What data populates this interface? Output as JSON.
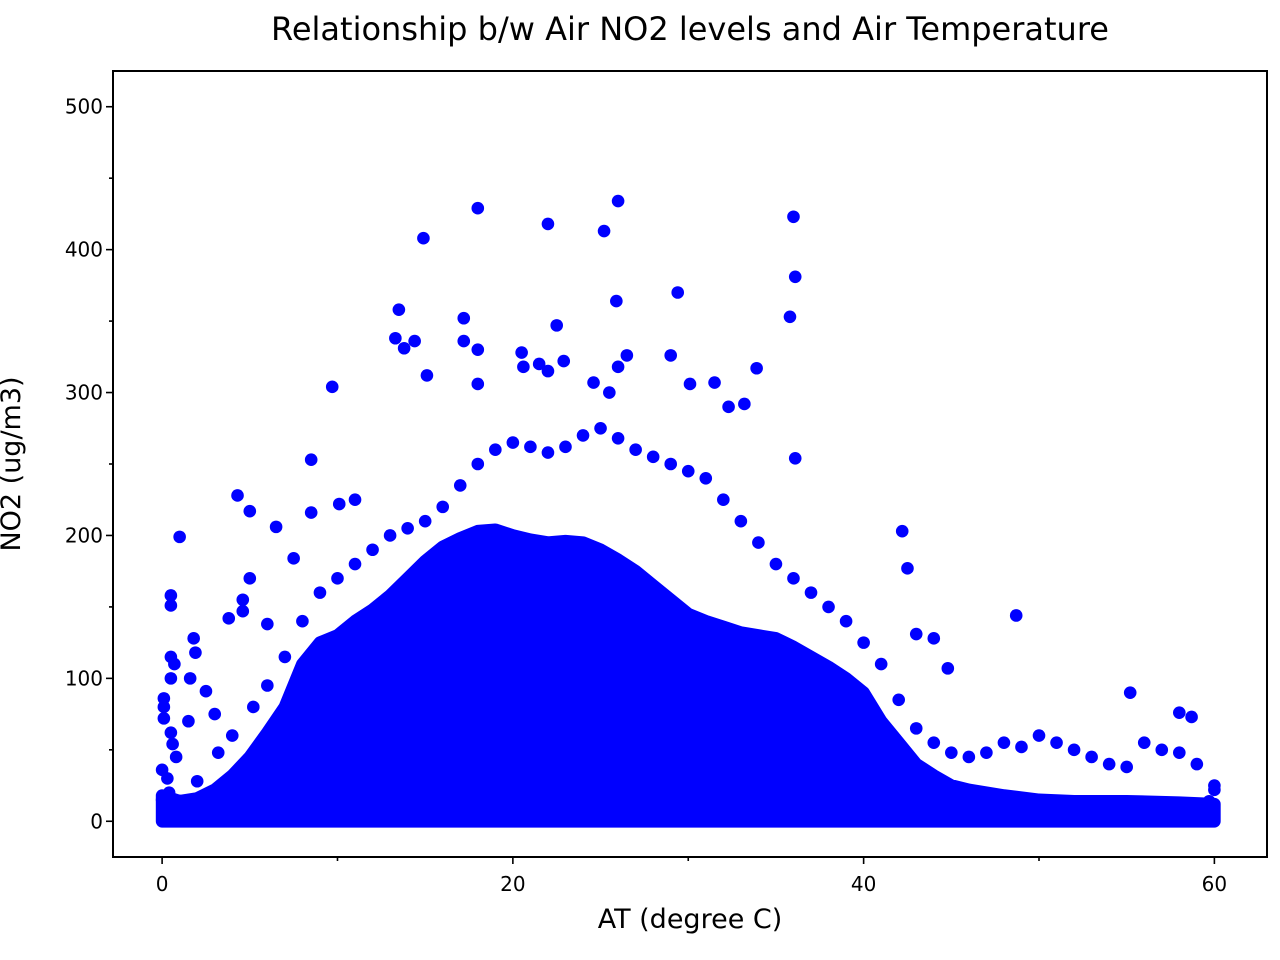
{
  "chart_data": {
    "type": "scatter",
    "title": "Relationship b/w Air NO2 levels and Air Temperature",
    "xlabel": "AT (degree C)",
    "ylabel": "NO2 (ug/m3)",
    "xlim": [
      -2.8,
      63
    ],
    "ylim": [
      -25,
      525
    ],
    "xticks": [
      0,
      20,
      40,
      60
    ],
    "xtick_labels": [
      "0",
      "20",
      "40",
      "60"
    ],
    "yticks": [
      0,
      100,
      200,
      300,
      400,
      500
    ],
    "ytick_labels": [
      "0",
      "100",
      "200",
      "300",
      "400",
      "500"
    ],
    "grid": false,
    "legend": "none",
    "marker_color": "#0000ff",
    "series": [
      {
        "points": [
          [
            0.0,
            15
          ],
          [
            0.0,
            36
          ],
          [
            0.1,
            72
          ],
          [
            0.1,
            80
          ],
          [
            0.1,
            86
          ],
          [
            0.2,
            8
          ],
          [
            0.3,
            30
          ],
          [
            0.4,
            20
          ],
          [
            0.5,
            62
          ],
          [
            0.5,
            100
          ],
          [
            0.5,
            115
          ],
          [
            0.5,
            151
          ],
          [
            0.5,
            158
          ],
          [
            0.6,
            54
          ],
          [
            0.7,
            110
          ],
          [
            0.8,
            45
          ],
          [
            1.0,
            199
          ],
          [
            1.5,
            70
          ],
          [
            1.6,
            100
          ],
          [
            1.8,
            128
          ],
          [
            1.9,
            118
          ],
          [
            2.5,
            91
          ],
          [
            3.0,
            75
          ],
          [
            3.8,
            142
          ],
          [
            4.3,
            228
          ],
          [
            4.6,
            147
          ],
          [
            4.6,
            155
          ],
          [
            5.0,
            217
          ],
          [
            5.0,
            170
          ],
          [
            6.0,
            138
          ],
          [
            6.5,
            206
          ],
          [
            7.5,
            184
          ],
          [
            8.5,
            253
          ],
          [
            8.5,
            216
          ],
          [
            9.7,
            304
          ],
          [
            10.1,
            222
          ],
          [
            11.0,
            225
          ],
          [
            13.3,
            338
          ],
          [
            13.5,
            358
          ],
          [
            13.8,
            331
          ],
          [
            14.4,
            336
          ],
          [
            14.9,
            408
          ],
          [
            15.1,
            312
          ],
          [
            17.2,
            352
          ],
          [
            17.2,
            336
          ],
          [
            18.0,
            429
          ],
          [
            18.0,
            330
          ],
          [
            18.0,
            306
          ],
          [
            20.5,
            328
          ],
          [
            20.6,
            318
          ],
          [
            21.5,
            320
          ],
          [
            22.0,
            418
          ],
          [
            22.0,
            315
          ],
          [
            22.5,
            347
          ],
          [
            22.9,
            322
          ],
          [
            24.6,
            307
          ],
          [
            25.2,
            413
          ],
          [
            25.5,
            300
          ],
          [
            25.9,
            364
          ],
          [
            26.0,
            434
          ],
          [
            26.0,
            318
          ],
          [
            26.5,
            326
          ],
          [
            29.0,
            326
          ],
          [
            29.4,
            370
          ],
          [
            30.1,
            306
          ],
          [
            31.5,
            307
          ],
          [
            32.3,
            290
          ],
          [
            33.2,
            292
          ],
          [
            33.9,
            317
          ],
          [
            35.8,
            353
          ],
          [
            36.0,
            423
          ],
          [
            36.1,
            381
          ],
          [
            36.1,
            254
          ],
          [
            42.2,
            203
          ],
          [
            42.5,
            177
          ],
          [
            43.0,
            131
          ],
          [
            44.0,
            128
          ],
          [
            44.8,
            107
          ],
          [
            48.7,
            144
          ],
          [
            55.2,
            90
          ],
          [
            58.0,
            76
          ],
          [
            58.7,
            73
          ],
          [
            59.3,
            3
          ],
          [
            59.7,
            14
          ],
          [
            60.0,
            25
          ],
          [
            1.2,
            10
          ],
          [
            2.0,
            28
          ],
          [
            3.2,
            48
          ],
          [
            4.0,
            60
          ],
          [
            5.2,
            80
          ],
          [
            6.0,
            95
          ],
          [
            7.0,
            115
          ],
          [
            8.0,
            140
          ],
          [
            9.0,
            160
          ],
          [
            10.0,
            170
          ],
          [
            11.0,
            180
          ],
          [
            12.0,
            190
          ],
          [
            13.0,
            200
          ],
          [
            14.0,
            205
          ],
          [
            15.0,
            210
          ],
          [
            16.0,
            220
          ],
          [
            17.0,
            235
          ],
          [
            18.0,
            250
          ],
          [
            19.0,
            260
          ],
          [
            20.0,
            265
          ],
          [
            21.0,
            262
          ],
          [
            22.0,
            258
          ],
          [
            23.0,
            262
          ],
          [
            24.0,
            270
          ],
          [
            25.0,
            275
          ],
          [
            26.0,
            268
          ],
          [
            27.0,
            260
          ],
          [
            28.0,
            255
          ],
          [
            29.0,
            250
          ],
          [
            30.0,
            245
          ],
          [
            31.0,
            240
          ],
          [
            32.0,
            225
          ],
          [
            33.0,
            210
          ],
          [
            34.0,
            195
          ],
          [
            35.0,
            180
          ],
          [
            36.0,
            170
          ],
          [
            37.0,
            160
          ],
          [
            38.0,
            150
          ],
          [
            39.0,
            140
          ],
          [
            40.0,
            125
          ],
          [
            41.0,
            110
          ],
          [
            42.0,
            85
          ],
          [
            43.0,
            65
          ],
          [
            44.0,
            55
          ],
          [
            45.0,
            48
          ],
          [
            46.0,
            45
          ],
          [
            47.0,
            48
          ],
          [
            48.0,
            55
          ],
          [
            49.0,
            52
          ],
          [
            50.0,
            60
          ],
          [
            51.0,
            55
          ],
          [
            52.0,
            50
          ],
          [
            53.0,
            45
          ],
          [
            54.0,
            40
          ],
          [
            55.0,
            38
          ],
          [
            56.0,
            55
          ],
          [
            57.0,
            50
          ],
          [
            58.0,
            48
          ],
          [
            59.0,
            40
          ],
          [
            60.0,
            22
          ]
        ]
      }
    ],
    "dense_region": {
      "description": "dense point cloud",
      "upper_envelope": [
        [
          0.0,
          18
        ],
        [
          1.0,
          14
        ],
        [
          2.0,
          16
        ],
        [
          3.0,
          22
        ],
        [
          4.0,
          32
        ],
        [
          5.0,
          45
        ],
        [
          6.0,
          62
        ],
        [
          7.0,
          80
        ],
        [
          8.0,
          110
        ],
        [
          9.0,
          125
        ],
        [
          10.0,
          130
        ],
        [
          11.0,
          140
        ],
        [
          12.0,
          148
        ],
        [
          13.0,
          158
        ],
        [
          14.0,
          170
        ],
        [
          15.0,
          182
        ],
        [
          16.0,
          192
        ],
        [
          17.0,
          198
        ],
        [
          18.0,
          203
        ],
        [
          19.0,
          204
        ],
        [
          20.0,
          200
        ],
        [
          21.0,
          197
        ],
        [
          22.0,
          195
        ],
        [
          23.0,
          196
        ],
        [
          24.0,
          195
        ],
        [
          25.0,
          190
        ],
        [
          26.0,
          183
        ],
        [
          27.0,
          175
        ],
        [
          28.0,
          165
        ],
        [
          29.0,
          155
        ],
        [
          30.0,
          145
        ],
        [
          31.0,
          140
        ],
        [
          32.0,
          136
        ],
        [
          33.0,
          132
        ],
        [
          34.0,
          130
        ],
        [
          35.0,
          128
        ],
        [
          36.0,
          122
        ],
        [
          37.0,
          115
        ],
        [
          38.0,
          108
        ],
        [
          39.0,
          100
        ],
        [
          40.0,
          90
        ],
        [
          41.0,
          70
        ],
        [
          42.0,
          55
        ],
        [
          43.0,
          40
        ],
        [
          44.0,
          32
        ],
        [
          45.0,
          25
        ],
        [
          46.0,
          22
        ],
        [
          47.0,
          20
        ],
        [
          48.0,
          18
        ],
        [
          50.0,
          15
        ],
        [
          52.0,
          14
        ],
        [
          55.0,
          14
        ],
        [
          58.0,
          13
        ],
        [
          60.0,
          12
        ]
      ]
    }
  }
}
